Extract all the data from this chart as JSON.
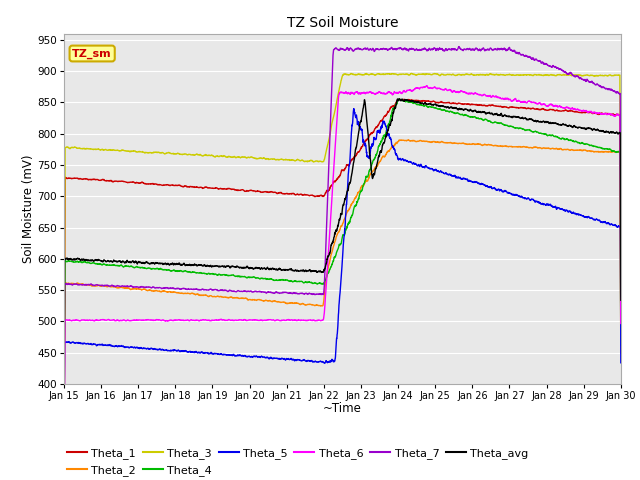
{
  "title": "TZ Soil Moisture",
  "xlabel": "~Time",
  "ylabel": "Soil Moisture (mV)",
  "ylim": [
    400,
    960
  ],
  "yticks": [
    400,
    450,
    500,
    550,
    600,
    650,
    700,
    750,
    800,
    850,
    900,
    950
  ],
  "xtick_labels": [
    "Jan 15",
    "Jan 16",
    "Jan 17",
    "Jan 18",
    "Jan 19",
    "Jan 20",
    "Jan 21",
    "Jan 22",
    "Jan 23",
    "Jan 24",
    "Jan 25",
    "Jan 26",
    "Jan 27",
    "Jan 28",
    "Jan 29",
    "Jan 30"
  ],
  "fig_bg_color": "#ffffff",
  "plot_bg_color": "#e8e8e8",
  "grid_color": "#ffffff",
  "series_colors": {
    "Theta_1": "#cc0000",
    "Theta_2": "#ff8800",
    "Theta_3": "#cccc00",
    "Theta_4": "#00bb00",
    "Theta_5": "#0000ee",
    "Theta_6": "#ff00ff",
    "Theta_7": "#9900cc",
    "Theta_avg": "#000000"
  },
  "annotation_label": "TZ_sm",
  "annotation_color": "#cc0000",
  "annotation_bg": "#ffff99",
  "annotation_border": "#ccaa00",
  "legend_order": [
    "Theta_1",
    "Theta_2",
    "Theta_3",
    "Theta_4",
    "Theta_5",
    "Theta_6",
    "Theta_7",
    "Theta_avg"
  ]
}
